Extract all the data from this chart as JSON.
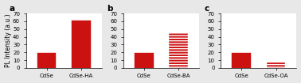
{
  "panels": [
    {
      "label": "a",
      "categories": [
        "CdSe",
        "CdSe-HA"
      ],
      "values": [
        19,
        61
      ],
      "bar_colors": [
        "#cc1111",
        "#cc1111"
      ],
      "hatch": [
        "",
        ""
      ],
      "ylim": [
        0,
        70
      ],
      "yticks": [
        0,
        10,
        20,
        30,
        40,
        50,
        60,
        70
      ]
    },
    {
      "label": "b",
      "categories": [
        "CdSe",
        "CdSe-BA"
      ],
      "values": [
        19,
        45
      ],
      "bar_colors": [
        "#cc1111",
        "#cc1111"
      ],
      "hatch": [
        "",
        "-----"
      ],
      "ylim": [
        0,
        70
      ],
      "yticks": [
        0,
        10,
        20,
        30,
        40,
        50,
        60,
        70
      ]
    },
    {
      "label": "c",
      "categories": [
        "CdSe",
        "CdSe-OA"
      ],
      "values": [
        19,
        7
      ],
      "bar_colors": [
        "#cc1111",
        "#cc1111"
      ],
      "hatch": [
        "",
        "-----"
      ],
      "ylim": [
        0,
        70
      ],
      "yticks": [
        0,
        10,
        20,
        30,
        40,
        50,
        60,
        70
      ]
    }
  ],
  "ylabel": "PL Intensity (a.u.)",
  "background_color": "#ffffff",
  "fig_facecolor": "#e8e8e8",
  "tick_fontsize": 5.0,
  "label_fontsize": 5.5,
  "panel_label_fontsize": 7.5,
  "bar_width": 0.55
}
